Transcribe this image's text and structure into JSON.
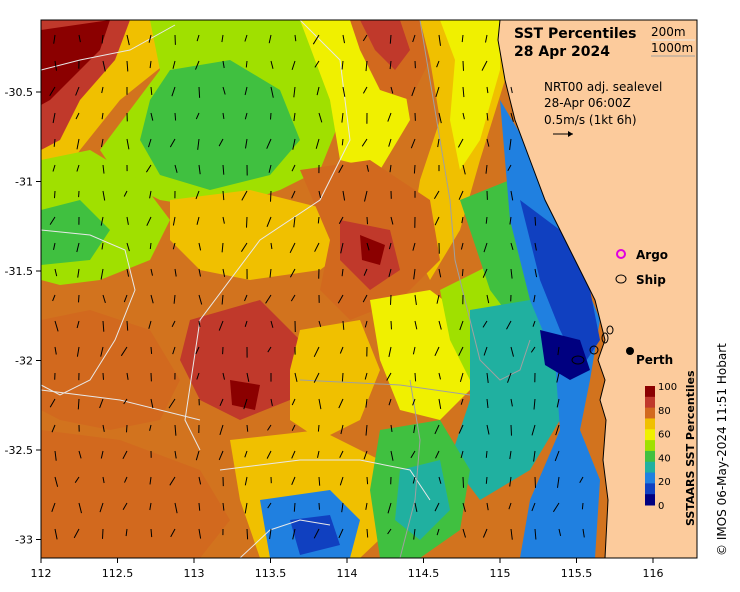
{
  "title": "SST Percentiles",
  "date": "28 Apr 2024",
  "contours": {
    "label_200": "200m",
    "label_1000": "1000m"
  },
  "info": {
    "line1": "NRT00 adj. sealevel",
    "line2": "28-Apr 06:00Z",
    "line3": "0.5m/s (1kt 6h)"
  },
  "legend": {
    "argo": "Argo",
    "ship": "Ship"
  },
  "place": {
    "perth": "Perth"
  },
  "colorbar": {
    "label": "SSTAARS SST Percentiles",
    "ticks": [
      "100",
      "80",
      "60",
      "40",
      "20",
      "0"
    ],
    "colors": [
      "#8b0000",
      "#c0392b",
      "#d2691e",
      "#f0c000",
      "#f0f000",
      "#a0e000",
      "#40c040",
      "#20b0a0",
      "#2080e0",
      "#1040c0",
      "#000080"
    ]
  },
  "credit": "© IMOS 06-May-2024 11:51 Hobart",
  "axes": {
    "x_ticks": [
      "112",
      "112.5",
      "113",
      "113.5",
      "114",
      "114.5",
      "115",
      "115.5",
      "116"
    ],
    "y_ticks": [
      "-30.5",
      "-31",
      "-31.5",
      "-32",
      "-32.5",
      "-33"
    ]
  },
  "colors": {
    "land": "#fccb9c",
    "argo_marker": "#e000e0"
  }
}
